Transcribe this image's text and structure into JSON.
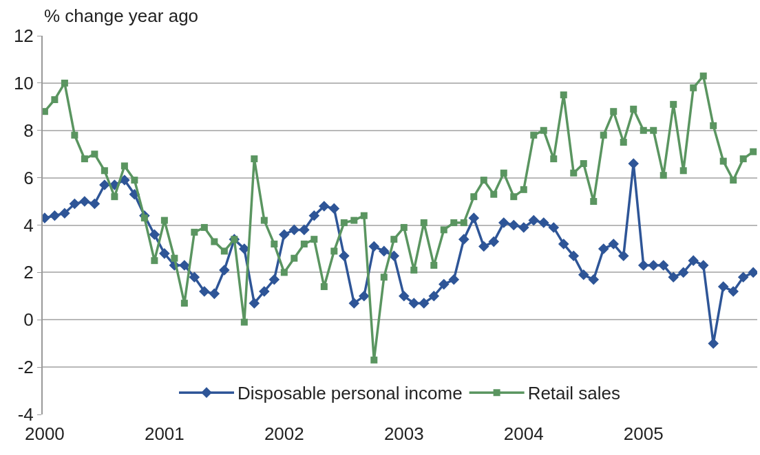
{
  "chart_data": {
    "type": "line",
    "ylabel": "% change year ago",
    "categories": [
      "2000",
      null,
      null,
      null,
      null,
      null,
      null,
      null,
      null,
      null,
      null,
      null,
      "2001",
      null,
      null,
      null,
      null,
      null,
      null,
      null,
      null,
      null,
      null,
      null,
      "2002",
      null,
      null,
      null,
      null,
      null,
      null,
      null,
      null,
      null,
      null,
      null,
      "2003",
      null,
      null,
      null,
      null,
      null,
      null,
      null,
      null,
      null,
      null,
      null,
      "2004",
      null,
      null,
      null,
      null,
      null,
      null,
      null,
      null,
      null,
      null,
      null,
      "2005",
      null,
      null,
      null,
      null,
      null,
      null,
      null,
      null,
      null,
      null,
      null
    ],
    "series": [
      {
        "name": "Disposable personal income",
        "color": "#2e5597",
        "marker": "diamond",
        "values": [
          4.3,
          4.4,
          4.5,
          4.9,
          5.0,
          4.9,
          5.7,
          5.7,
          5.9,
          5.3,
          4.4,
          3.6,
          2.8,
          2.3,
          2.3,
          1.8,
          1.2,
          1.1,
          2.1,
          3.4,
          3.0,
          0.7,
          1.2,
          1.7,
          3.6,
          3.8,
          3.8,
          4.4,
          4.8,
          4.7,
          2.7,
          0.7,
          1.0,
          3.1,
          2.9,
          2.7,
          1.0,
          0.7,
          0.7,
          1.0,
          1.5,
          1.7,
          3.4,
          4.3,
          3.1,
          3.3,
          4.1,
          4.0,
          3.9,
          4.2,
          4.1,
          3.9,
          3.2,
          2.7,
          1.9,
          1.7,
          3.0,
          3.2,
          2.7,
          6.6,
          2.3,
          2.3,
          2.3,
          1.8,
          2.0,
          2.5,
          2.3,
          -1.0,
          1.4,
          1.2,
          1.8,
          2.0
        ]
      },
      {
        "name": "Retail sales",
        "color": "#5a9560",
        "marker": "square",
        "values": [
          8.8,
          9.3,
          10.0,
          7.8,
          6.8,
          7.0,
          6.3,
          5.2,
          6.5,
          5.9,
          4.3,
          2.5,
          4.2,
          2.6,
          0.7,
          3.7,
          3.9,
          3.3,
          2.9,
          3.4,
          -0.1,
          6.8,
          4.2,
          3.2,
          2.0,
          2.6,
          3.2,
          3.4,
          1.4,
          2.9,
          4.1,
          4.2,
          4.4,
          -1.7,
          1.8,
          3.4,
          3.9,
          2.1,
          4.1,
          2.3,
          3.8,
          4.1,
          4.1,
          5.2,
          5.9,
          5.3,
          6.2,
          5.2,
          5.5,
          7.8,
          8.0,
          6.8,
          9.5,
          6.2,
          6.6,
          5.0,
          7.8,
          8.8,
          7.5,
          8.9,
          8.0,
          8.0,
          6.1,
          9.1,
          6.3,
          9.8,
          10.3,
          8.2,
          6.7,
          5.9,
          6.8,
          7.1
        ]
      }
    ],
    "ylim": [
      -4,
      12
    ],
    "yticks": [
      -4,
      -2,
      0,
      2,
      4,
      6,
      8,
      10,
      12
    ],
    "grid": "y",
    "legend": "bottom"
  }
}
